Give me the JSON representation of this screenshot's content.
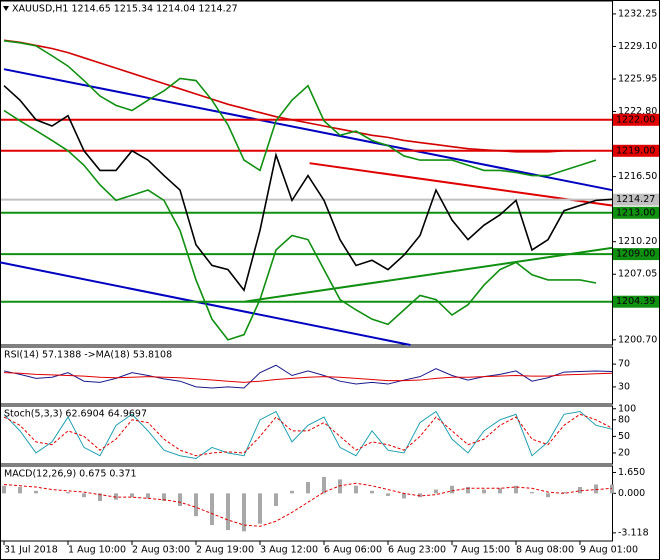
{
  "chart_data": [
    {
      "type": "line",
      "title": "XAUUSD,H1  1214.65 1215.34 1214.04 1214.27",
      "categories": [
        "31 Jul 2018",
        null,
        null,
        null,
        "1 Aug 10:00",
        null,
        null,
        null,
        "2 Aug 03:00",
        null,
        null,
        null,
        "2 Aug 19:00",
        null,
        null,
        null,
        "3 Aug 12:00",
        null,
        null,
        null,
        "6 Aug 06:00",
        null,
        null,
        null,
        "6 Aug 23:00",
        null,
        null,
        null,
        "7 Aug 15:00",
        null,
        null,
        null,
        "8 Aug 08:00",
        null,
        null,
        null,
        "9 Aug 01:00",
        null,
        null
      ],
      "series": [
        {
          "color": "#000000",
          "values": [
            1225.3,
            1223.9,
            1222.0,
            1221.4,
            1222.4,
            1219.0,
            1217.1,
            1217.1,
            1219.0,
            1218.1,
            1216.6,
            1215.2,
            1209.9,
            1207.9,
            1207.5,
            1205.5,
            1211.3,
            1218.6,
            1214.2,
            1216.6,
            1214.2,
            1210.4,
            1207.9,
            1208.4,
            1207.5,
            1208.9,
            1210.8,
            1215.2,
            1212.3,
            1210.4,
            1211.8,
            1212.8,
            1214.2,
            1209.4,
            1210.4,
            1213.2,
            1213.7,
            1214.2,
            1214.3
          ]
        },
        {
          "color": "#d40000",
          "values": [
            1229.7,
            1229.5,
            1229.2,
            1228.9,
            1228.5,
            1228.0,
            1227.5,
            1227.0,
            1226.5,
            1226.0,
            1225.5,
            1225.0,
            1224.5,
            1224.0,
            1223.5,
            1223.1,
            1222.7,
            1222.3,
            1222.0,
            1221.7,
            1221.4,
            1221.1,
            1220.8,
            1220.5,
            1220.3,
            1220.0,
            1219.8,
            1219.6,
            1219.4,
            1219.2,
            1219.1,
            1219.0,
            1218.9,
            1218.9,
            1218.9,
            1219.0,
            1219.0,
            null,
            null
          ]
        },
        {
          "color": "#109010",
          "values": [
            1229.65,
            1229.45,
            1229.16,
            1228.2,
            1227.2,
            1225.8,
            1224.3,
            1223.4,
            1222.9,
            1223.9,
            1224.8,
            1226.0,
            1225.8,
            1223.9,
            1221.5,
            1218.1,
            1217.1,
            1221.9,
            1223.9,
            1225.3,
            1221.9,
            1220.5,
            1220.9,
            1220.0,
            1219.5,
            1218.5,
            1218.1,
            1218.1,
            1218.1,
            1217.6,
            1217.1,
            1217.1,
            1216.9,
            1216.6,
            1216.6,
            1217.1,
            1217.6,
            1218.1,
            null
          ]
        },
        {
          "color": "#109010",
          "values": [
            1222.9,
            1221.9,
            1220.96,
            1220.0,
            1219.0,
            1217.6,
            1215.7,
            1214.2,
            1214.7,
            1215.2,
            1214.2,
            1211.3,
            1206.5,
            1202.7,
            1200.7,
            1201.2,
            1204.6,
            1209.4,
            1210.8,
            1210.4,
            1207.5,
            1204.6,
            1203.6,
            1202.7,
            1202.2,
            1203.6,
            1205.0,
            1204.6,
            1203.1,
            1204.1,
            1206.0,
            1207.5,
            1208.2,
            1207.0,
            1206.5,
            1206.5,
            1206.5,
            1206.2,
            null
          ]
        }
      ],
      "ylim": [
        1200.2,
        1233.5
      ],
      "yticks": [
        1232.25,
        {
          "value": 1229.1,
          "label": "1229.10"
        },
        1225.95,
        {
          "value": 1222.8,
          "label": "1222.80"
        },
        {
          "value": 1216.5,
          "label": "1216.50"
        },
        {
          "value": 1210.2,
          "label": "1210.20"
        },
        1207.05,
        {
          "value": 1200.7,
          "label": "1200.70"
        }
      ],
      "levels": [
        {
          "value": 1222,
          "label": "1222.00",
          "color": "#e00000"
        },
        {
          "value": 1219,
          "label": "1219.00",
          "color": "#e00000"
        },
        {
          "value": 1214.27,
          "label": "1214.27",
          "color": "#c0c0c0"
        },
        {
          "value": 1213,
          "label": "1213.00",
          "color": "#109010"
        },
        {
          "value": 1209,
          "label": "1209.00",
          "color": "#109010"
        },
        {
          "value": 1204.39,
          "label": "1204.39",
          "color": "#109010"
        }
      ],
      "trendlines": [
        {
          "color": "#0000c0",
          "x": [
            0,
            38
          ],
          "values": [
            1226.9,
            1215.2
          ]
        },
        {
          "color": "#0000c0",
          "x": [
            -0.25,
            25.4
          ],
          "values": [
            1208.2,
            1200.2
          ]
        },
        {
          "color": "#e00000",
          "x": [
            19.1,
            38
          ],
          "values": [
            1217.8,
            1213.7
          ]
        },
        {
          "color": "#109010",
          "x": [
            15.06,
            38
          ],
          "values": [
            1204.4,
            1209.6
          ]
        }
      ]
    },
    {
      "type": "line",
      "title": "RSI(14) 57.1388  ->MA(18) 53.8108",
      "series": [
        {
          "color": "#1a1a8c",
          "values": [
            58,
            52,
            45,
            47,
            55,
            40,
            38,
            45,
            55,
            50,
            44,
            40,
            30,
            28,
            30,
            28,
            55,
            68,
            50,
            58,
            50,
            40,
            35,
            38,
            35,
            42,
            48,
            62,
            50,
            42,
            48,
            52,
            58,
            40,
            46,
            56,
            57,
            58,
            57
          ]
        },
        {
          "color": "#e00000",
          "values": [
            55,
            54,
            52,
            51,
            50,
            49,
            47,
            46,
            47,
            48,
            47,
            46,
            44,
            42,
            40,
            38,
            40,
            43,
            45,
            47,
            48,
            47,
            45,
            43,
            41,
            41,
            42,
            45,
            47,
            47,
            48,
            49,
            50,
            49,
            49,
            51,
            52,
            53,
            54
          ]
        }
      ],
      "ylim": [
        0,
        100
      ],
      "yticks": [
        70,
        30
      ]
    },
    {
      "type": "line",
      "title": "Stoch(5,3,3) 62.6904 64.9697",
      "series": [
        {
          "color": "#20a0b0",
          "values": [
            90,
            60,
            20,
            40,
            85,
            30,
            15,
            70,
            90,
            60,
            25,
            15,
            10,
            30,
            20,
            15,
            80,
            95,
            40,
            70,
            85,
            30,
            15,
            60,
            25,
            20,
            75,
            95,
            45,
            20,
            60,
            80,
            90,
            15,
            40,
            90,
            95,
            70,
            63
          ]
        },
        {
          "color": "#e00000",
          "dash": true,
          "values": [
            85,
            70,
            40,
            35,
            60,
            50,
            25,
            45,
            80,
            75,
            45,
            25,
            15,
            20,
            22,
            20,
            50,
            85,
            60,
            60,
            75,
            50,
            25,
            40,
            35,
            25,
            50,
            85,
            60,
            35,
            45,
            70,
            85,
            45,
            35,
            70,
            90,
            80,
            65
          ]
        }
      ],
      "ylim": [
        0,
        105
      ],
      "yticks": [
        100,
        80,
        50,
        20
      ]
    },
    {
      "type": "macd",
      "title": "MACD(12,26,9) 0.675 0.371",
      "series": [
        {
          "type": "bar",
          "color": "#a8a8a8",
          "values": [
            0.6,
            0.5,
            0.2,
            0,
            0.1,
            -0.3,
            -0.6,
            -0.5,
            -0.3,
            -0.4,
            -0.6,
            -1.0,
            -1.8,
            -2.5,
            -2.9,
            -3.0,
            -2.4,
            -1.0,
            0.2,
            0.9,
            1.3,
            1.1,
            0.6,
            0.2,
            -0.2,
            -0.4,
            -0.3,
            0.3,
            0.6,
            0.5,
            0.3,
            0.4,
            0.6,
            0.1,
            -0.3,
            0.1,
            0.5,
            0.7,
            0.7
          ]
        },
        {
          "color": "#e00000",
          "dash": true,
          "values": [
            0.7,
            0.6,
            0.5,
            0.3,
            0.2,
            0.1,
            -0.1,
            -0.3,
            -0.3,
            -0.4,
            -0.5,
            -0.7,
            -1.1,
            -1.6,
            -2.1,
            -2.5,
            -2.6,
            -2.2,
            -1.5,
            -0.7,
            0.1,
            0.6,
            0.8,
            0.6,
            0.3,
            0,
            -0.2,
            -0.1,
            0.2,
            0.4,
            0.4,
            0.4,
            0.5,
            0.4,
            0.1,
            0,
            0.2,
            0.3,
            0.4
          ]
        }
      ],
      "ylim": [
        -3.76,
        2.16
      ],
      "yticks": [
        {
          "value": 1.65,
          "label": "1.650"
        },
        {
          "value": 0,
          "label": "0.000"
        },
        -3.118
      ]
    }
  ]
}
